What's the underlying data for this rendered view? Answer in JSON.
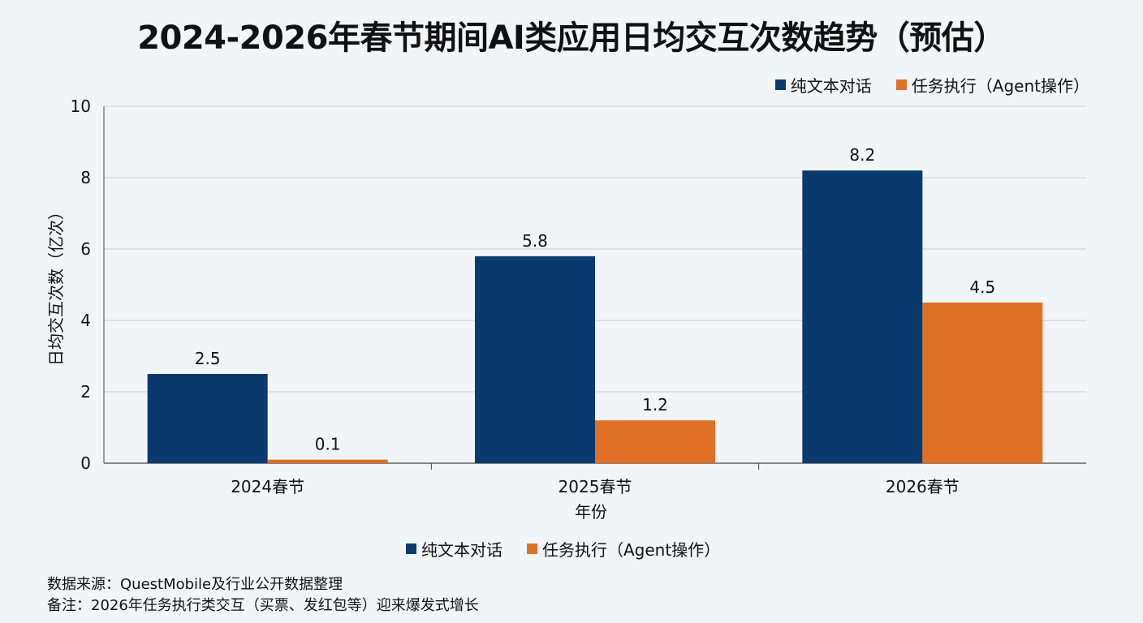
{
  "chart_data": {
    "type": "bar",
    "title": "2024-2026年春节期间AI类应用日均交互次数趋势（预估）",
    "xlabel": "年份",
    "ylabel": "日均交互次数（亿次）",
    "categories": [
      "2024春节",
      "2025春节",
      "2026春节"
    ],
    "series": [
      {
        "name": "纯文本对话",
        "values": [
          2.5,
          5.8,
          8.2
        ],
        "color": "#0b3a6e"
      },
      {
        "name": "任务执行（Agent操作）",
        "values": [
          0.1,
          1.2,
          4.5
        ],
        "color": "#e07026"
      }
    ],
    "ylim": [
      0,
      10
    ],
    "yticks": [
      0,
      2,
      4,
      6,
      8,
      10
    ],
    "grid": true,
    "legend_placement": "top-right and bottom-center"
  },
  "notes": {
    "source": "数据来源：QuestMobile及行业公开数据整理",
    "remark": "备注：2026年任务执行类交互（买票、发红包等）迎来爆发式增长"
  }
}
